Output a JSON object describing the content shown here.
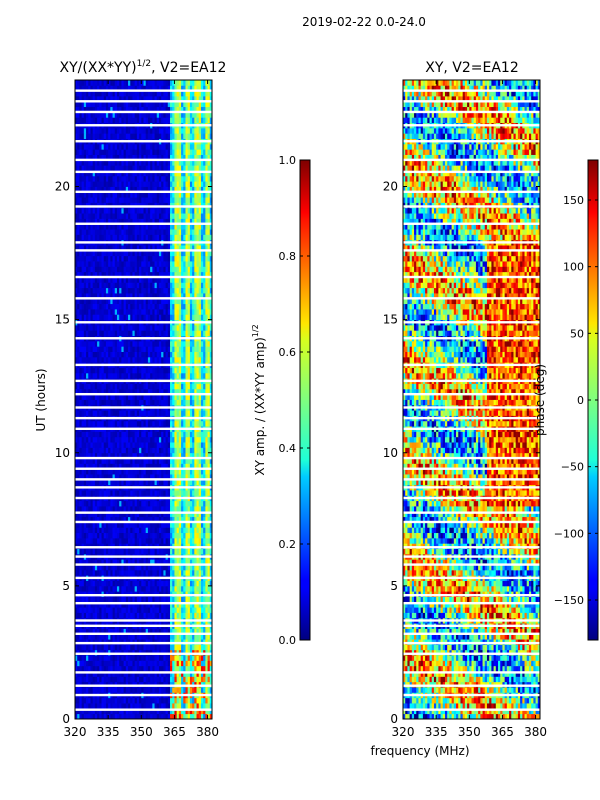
{
  "suptitle": "2019-02-22 0.0-24.0",
  "chart_data": [
    {
      "type": "heatmap",
      "title": "XY/(XX*YY)^{1/2}, V2=EA12",
      "title_main": "XY/(XX*YY)",
      "title_sup": "1/2",
      "title_tail": ", V2=EA12",
      "xlabel": "",
      "ylabel": "UT (hours)",
      "xlim": [
        320,
        382
      ],
      "ylim": [
        0,
        24
      ],
      "xticks": [
        "320",
        "335",
        "350",
        "365",
        "380"
      ],
      "yticks": [
        "0",
        "5",
        "10",
        "15",
        "20"
      ],
      "colorbar": {
        "label": "XY amp. / (XX*YY amp)^{1/2}",
        "label_main": "XY amp. / (XX*YY amp)",
        "label_sup": "1/2",
        "range": [
          0.0,
          1.0
        ],
        "ticks": [
          "0.0",
          "0.2",
          "0.4",
          "0.6",
          "0.8",
          "1.0"
        ],
        "colormap": "jet"
      },
      "description_values": {
        "background_level": 0.05,
        "band_365_385_level": 0.35
      }
    },
    {
      "type": "heatmap",
      "title": "XY, V2=EA12",
      "xlabel": "frequency (MHz)",
      "ylabel": "",
      "xlim": [
        320,
        382
      ],
      "ylim": [
        0,
        24
      ],
      "xticks": [
        "320",
        "335",
        "350",
        "365",
        "380"
      ],
      "yticks": [
        "0",
        "5",
        "10",
        "15",
        "20"
      ],
      "colorbar": {
        "label": "phase (deg)",
        "range": [
          -180,
          180
        ],
        "ticks": [
          "150",
          "100",
          "50",
          "0",
          "−50",
          "−100",
          "−150"
        ],
        "colormap": "jet"
      }
    }
  ],
  "colors": {
    "jet_low": "#00007f",
    "jet_mid": "#7fff7f",
    "jet_high": "#7f0000",
    "gap": "#ffffff"
  }
}
